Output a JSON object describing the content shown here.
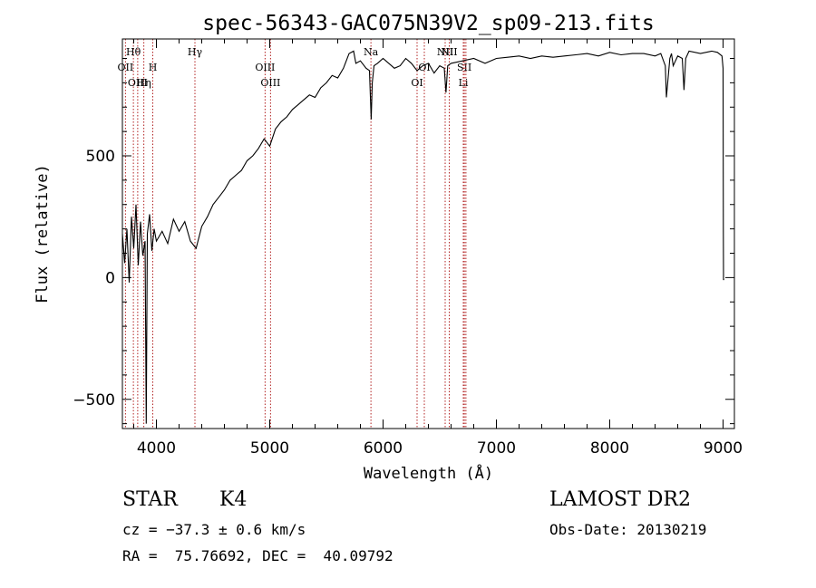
{
  "chart_data": {
    "type": "line",
    "title": "spec-56343-GAC075N39V2_sp09-213.fits",
    "xlabel": "Wavelength (Å)",
    "ylabel": "Flux (relative)",
    "xlim": [
      3700,
      9100
    ],
    "ylim": [
      -620,
      980
    ],
    "xticks": [
      4000,
      5000,
      6000,
      7000,
      8000,
      9000
    ],
    "yticks": [
      -500,
      0,
      500
    ],
    "x_tick_labels": [
      "4000",
      "5000",
      "6000",
      "7000",
      "8000",
      "9000"
    ],
    "y_tick_labels": [
      "−500",
      "0",
      "500"
    ],
    "line_color": "#000000",
    "marker_color": "#b22222",
    "spectrum_x": [
      3700,
      3720,
      3740,
      3760,
      3780,
      3800,
      3820,
      3840,
      3860,
      3880,
      3900,
      3910,
      3920,
      3940,
      3960,
      3980,
      4000,
      4050,
      4100,
      4150,
      4200,
      4250,
      4300,
      4350,
      4400,
      4450,
      4500,
      4550,
      4600,
      4650,
      4700,
      4750,
      4800,
      4850,
      4900,
      4950,
      5000,
      5050,
      5100,
      5150,
      5200,
      5250,
      5300,
      5350,
      5400,
      5450,
      5500,
      5550,
      5600,
      5650,
      5700,
      5740,
      5760,
      5800,
      5850,
      5880,
      5895,
      5905,
      5920,
      5950,
      6000,
      6050,
      6100,
      6150,
      6200,
      6250,
      6300,
      6350,
      6400,
      6450,
      6500,
      6540,
      6555,
      6570,
      6600,
      6700,
      6800,
      6900,
      7000,
      7100,
      7200,
      7300,
      7400,
      7500,
      7600,
      7700,
      7800,
      7900,
      8000,
      8100,
      8200,
      8300,
      8400,
      8450,
      8490,
      8500,
      8530,
      8545,
      8560,
      8600,
      8640,
      8655,
      8670,
      8700,
      8800,
      8900,
      8950,
      8990,
      9000,
      9002,
      9004,
      9006
    ],
    "spectrum_y": [
      180,
      60,
      200,
      -20,
      250,
      120,
      300,
      50,
      230,
      90,
      150,
      -600,
      180,
      260,
      110,
      200,
      150,
      190,
      140,
      240,
      190,
      230,
      150,
      120,
      210,
      250,
      300,
      330,
      360,
      400,
      420,
      440,
      480,
      500,
      530,
      570,
      540,
      610,
      640,
      660,
      690,
      710,
      730,
      750,
      740,
      780,
      800,
      830,
      820,
      860,
      920,
      930,
      880,
      890,
      860,
      850,
      650,
      800,
      870,
      880,
      900,
      880,
      860,
      870,
      900,
      880,
      850,
      870,
      880,
      840,
      870,
      860,
      760,
      870,
      880,
      890,
      900,
      880,
      900,
      905,
      910,
      900,
      910,
      905,
      910,
      915,
      920,
      910,
      925,
      915,
      920,
      920,
      910,
      920,
      870,
      740,
      900,
      920,
      870,
      910,
      900,
      770,
      900,
      930,
      920,
      930,
      925,
      910,
      860,
      200,
      -10,
      -5
    ],
    "lines": [
      {
        "name": "Hθ",
        "wavelength": 3797,
        "row": "top"
      },
      {
        "name": "OII",
        "wavelength": 3727,
        "row": "mid"
      },
      {
        "name": "OIII",
        "wavelength": 3835,
        "row": "low"
      },
      {
        "name": "Hη",
        "wavelength": 3889,
        "row": "low"
      },
      {
        "name": "H",
        "wavelength": 3968,
        "row": "mid"
      },
      {
        "name": "Hγ",
        "wavelength": 4340,
        "row": "top"
      },
      {
        "name": "OIII",
        "wavelength": 4959,
        "row": "mid"
      },
      {
        "name": "OIII",
        "wavelength": 5007,
        "row": "low"
      },
      {
        "name": "Na",
        "wavelength": 5893,
        "row": "top"
      },
      {
        "name": "OI",
        "wavelength": 6300,
        "row": "low"
      },
      {
        "name": "OI",
        "wavelength": 6364,
        "row": "mid"
      },
      {
        "name": "NII",
        "wavelength": 6548,
        "row": "top"
      },
      {
        "name": "NII",
        "wavelength": 6584,
        "row": "top"
      },
      {
        "name": "SII",
        "wavelength": 6717,
        "row": "mid"
      },
      {
        "name": "Li",
        "wavelength": 6708,
        "row": "low"
      },
      {
        "name": "SII",
        "wavelength": 6731,
        "row": "none"
      }
    ]
  },
  "info": {
    "object_class": "STAR",
    "subclass": "K4",
    "survey": "LAMOST DR2",
    "cz": "cz = −37.3 ± 0.6 km/s",
    "obs_date": "Obs-Date: 20130219",
    "coords": "RA =  75.76692, DEC =  40.09792"
  }
}
